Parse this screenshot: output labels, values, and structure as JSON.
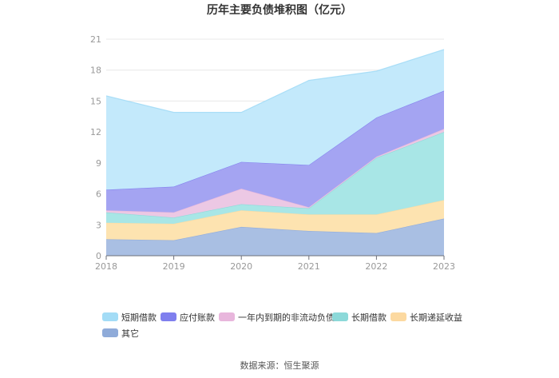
{
  "chart_data": {
    "type": "area",
    "stacked": true,
    "title": "历年主要负债堆积图（亿元）",
    "x": [
      "2018",
      "2019",
      "2020",
      "2021",
      "2022",
      "2023"
    ],
    "ylim": [
      0,
      21
    ],
    "yticks": [
      "0",
      "3",
      "6",
      "9",
      "12",
      "15",
      "18",
      "21"
    ],
    "grid": true,
    "series": [
      {
        "name": "其它",
        "color": "#a9bfe3",
        "values": [
          1.6,
          1.5,
          2.8,
          2.4,
          2.2,
          3.6
        ]
      },
      {
        "name": "长期递延收益",
        "color": "#fde3b0",
        "values": [
          1.6,
          1.6,
          1.6,
          1.6,
          1.8,
          1.8
        ]
      },
      {
        "name": "长期借款",
        "color": "#a8e6e6",
        "values": [
          1.0,
          0.6,
          0.6,
          0.6,
          5.5,
          6.6
        ]
      },
      {
        "name": "一年内到期的非流动负债",
        "color": "#ecc8e4",
        "values": [
          0.2,
          0.5,
          1.5,
          0.1,
          0.1,
          0.3
        ]
      },
      {
        "name": "应付账款",
        "color": "#a4a4f2",
        "values": [
          2.0,
          2.5,
          2.6,
          4.1,
          3.8,
          3.7
        ]
      },
      {
        "name": "短期借款",
        "color": "#c3e9fb",
        "values": [
          9.1,
          7.2,
          4.8,
          8.2,
          4.5,
          4.0
        ]
      }
    ],
    "legend": [
      {
        "name": "短期借款",
        "color": "#a3dcf6"
      },
      {
        "name": "应付账款",
        "color": "#7f7fee"
      },
      {
        "name": "一年内到期的非流动负债",
        "color": "#e8b6dc"
      },
      {
        "name": "长期借款",
        "color": "#8cd9d9"
      },
      {
        "name": "长期递延收益",
        "color": "#fcd9a0"
      },
      {
        "name": "其它",
        "color": "#8fabd9"
      }
    ],
    "source": "数据来源：恒生聚源"
  }
}
